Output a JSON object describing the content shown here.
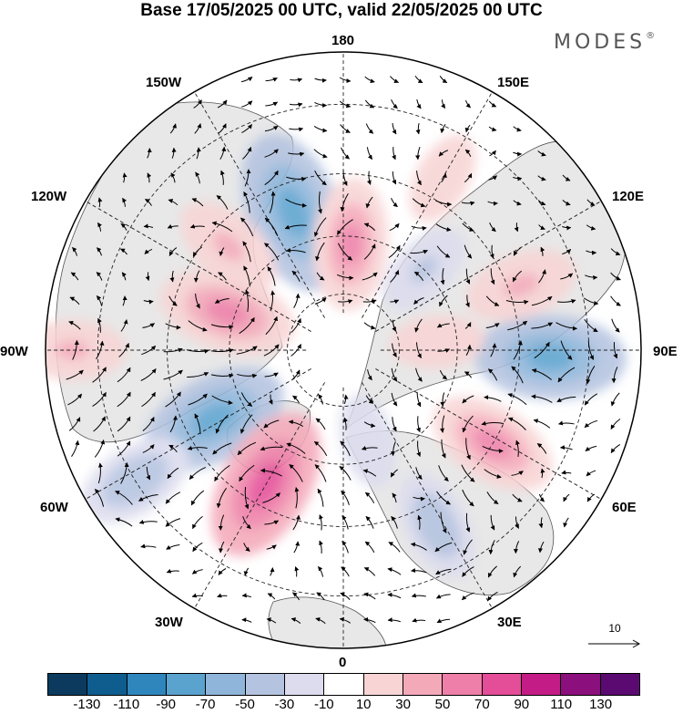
{
  "title": "Base 17/05/2025 00 UTC, valid 22/05/2025 00 UTC",
  "brand": "MODES",
  "brand_mark": "®",
  "map": {
    "projection": "polar-stereographic-north",
    "longitude_labels": {
      "top": "180",
      "top_right": "150E",
      "right_upper": "120E",
      "right": "90E",
      "right_lower": "60E",
      "bottom_right": "30E",
      "bottom": "0",
      "bottom_left": "30W",
      "left_lower": "60W",
      "left": "90W",
      "left_upper": "120W",
      "top_left": "150W"
    },
    "graticule_dashed": true,
    "land_fill_color": "#e8e8e8",
    "coastline_color": "#555555",
    "vector_color": "#000000"
  },
  "reference_vector": {
    "label": "10"
  },
  "colorbar": {
    "colors": [
      "#0b3a5e",
      "#0f5d8f",
      "#2e86bd",
      "#5ba3cf",
      "#8fb6da",
      "#b4c3e0",
      "#dcdcee",
      "#ffffff",
      "#f8d4d4",
      "#f4a9b9",
      "#ee7fa8",
      "#e44d98",
      "#c41c86",
      "#8b0f7c",
      "#5b0a72"
    ],
    "tick_labels": [
      "-130",
      "-110",
      "-90",
      "-70",
      "-50",
      "-30",
      "-10",
      "10",
      "30",
      "50",
      "70",
      "90",
      "110",
      "130"
    ]
  },
  "anomaly_centers": [
    {
      "sign": "negative",
      "lon": -160,
      "lat": 52,
      "value": -80
    },
    {
      "sign": "positive",
      "lon": 176,
      "lat": 62,
      "value": 55
    },
    {
      "sign": "positive",
      "lon": 150,
      "lat": 40,
      "value": 25
    },
    {
      "sign": "positive",
      "lon": -132,
      "lat": 50,
      "value": 40
    },
    {
      "sign": "positive",
      "lon": -108,
      "lat": 58,
      "value": 60
    },
    {
      "sign": "positive",
      "lon": -90,
      "lat": 25,
      "value": 35
    },
    {
      "sign": "negative",
      "lon": -62,
      "lat": 52,
      "value": -70
    },
    {
      "sign": "negative",
      "lon": -58,
      "lat": 30,
      "value": -45
    },
    {
      "sign": "positive",
      "lon": -30,
      "lat": 50,
      "value": 75
    },
    {
      "sign": "negative",
      "lon": 28,
      "lat": 40,
      "value": -40
    },
    {
      "sign": "negative",
      "lon": 15,
      "lat": 65,
      "value": -25
    },
    {
      "sign": "positive",
      "lon": 58,
      "lat": 45,
      "value": 55
    },
    {
      "sign": "negative",
      "lon": 88,
      "lat": 38,
      "value": -70
    },
    {
      "sign": "positive",
      "lon": 110,
      "lat": 42,
      "value": 40
    },
    {
      "sign": "positive",
      "lon": 95,
      "lat": 65,
      "value": 25
    },
    {
      "sign": "negative",
      "lon": 135,
      "lat": 60,
      "value": -30
    }
  ]
}
